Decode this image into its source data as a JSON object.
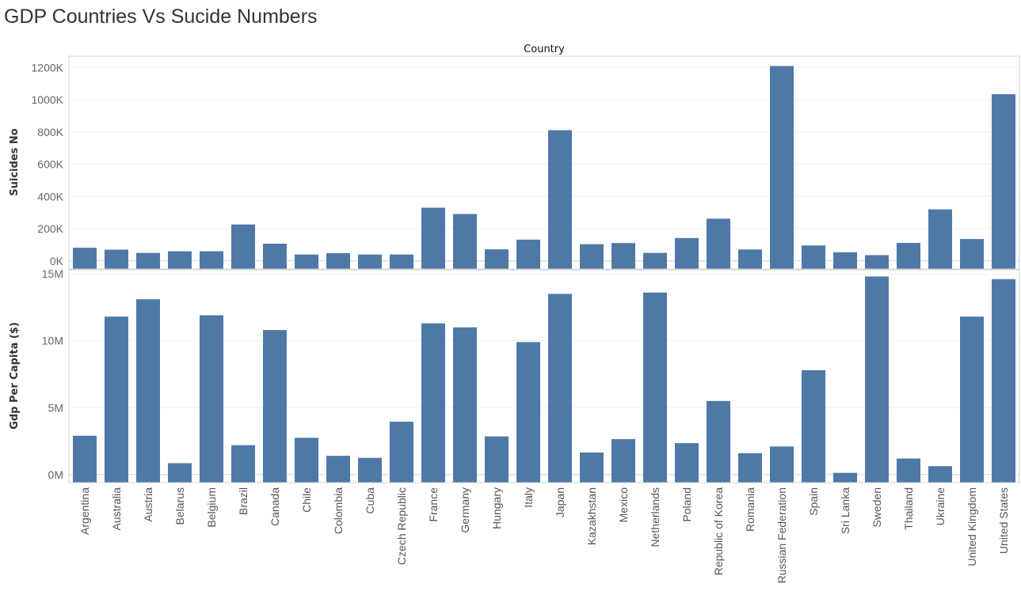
{
  "title": "GDP Countries Vs Sucide Numbers",
  "header": "Country",
  "colors": {
    "bar": "#4e79a7"
  },
  "chart_data": {
    "type": "bar",
    "title": "GDP Countries Vs Sucide Numbers",
    "xlabel": "Country",
    "grid": true,
    "categories": [
      "Argentina",
      "Australia",
      "Austria",
      "Belarus",
      "Belgium",
      "Brazil",
      "Canada",
      "Chile",
      "Colombia",
      "Cuba",
      "Czech Republic",
      "France",
      "Germany",
      "Hungary",
      "Italy",
      "Japan",
      "Kazakhstan",
      "Mexico",
      "Netherlands",
      "Poland",
      "Republic of Korea",
      "Romania",
      "Russian Federation",
      "Spain",
      "Sri Lanka",
      "Sweden",
      "Thailand",
      "Ukraine",
      "United Kingdom",
      "United States"
    ],
    "panels": [
      {
        "ylabel": "Suicides No",
        "ylim": [
          -50000,
          1270000
        ],
        "ticks": [
          0,
          200000,
          400000,
          600000,
          800000,
          1000000,
          1200000
        ],
        "tick_labels": [
          "0K",
          "200K",
          "400K",
          "600K",
          "800K",
          "1000K",
          "1200K"
        ],
        "values": [
          82000,
          70000,
          50000,
          60000,
          60000,
          226000,
          107000,
          40000,
          48000,
          40000,
          40000,
          330000,
          291000,
          72000,
          132000,
          811000,
          104000,
          111000,
          50000,
          142000,
          262000,
          71000,
          1209000,
          96000,
          54000,
          36000,
          112000,
          320000,
          136000,
          1034000
        ]
      },
      {
        "ylabel": "Gdp Per Capita ($)",
        "ylim": [
          -600000,
          15300000
        ],
        "ticks": [
          0,
          5000000,
          10000000,
          15000000
        ],
        "tick_labels": [
          "0M",
          "5M",
          "10M",
          "15M"
        ],
        "values": [
          2900000,
          11800000,
          13100000,
          850000,
          11900000,
          2200000,
          10800000,
          2750000,
          1400000,
          1250000,
          3950000,
          11300000,
          11000000,
          2850000,
          9900000,
          13500000,
          1650000,
          2650000,
          13600000,
          2350000,
          5500000,
          1600000,
          2100000,
          7800000,
          130000,
          14800000,
          1200000,
          630000,
          11800000,
          14600000
        ]
      }
    ]
  }
}
